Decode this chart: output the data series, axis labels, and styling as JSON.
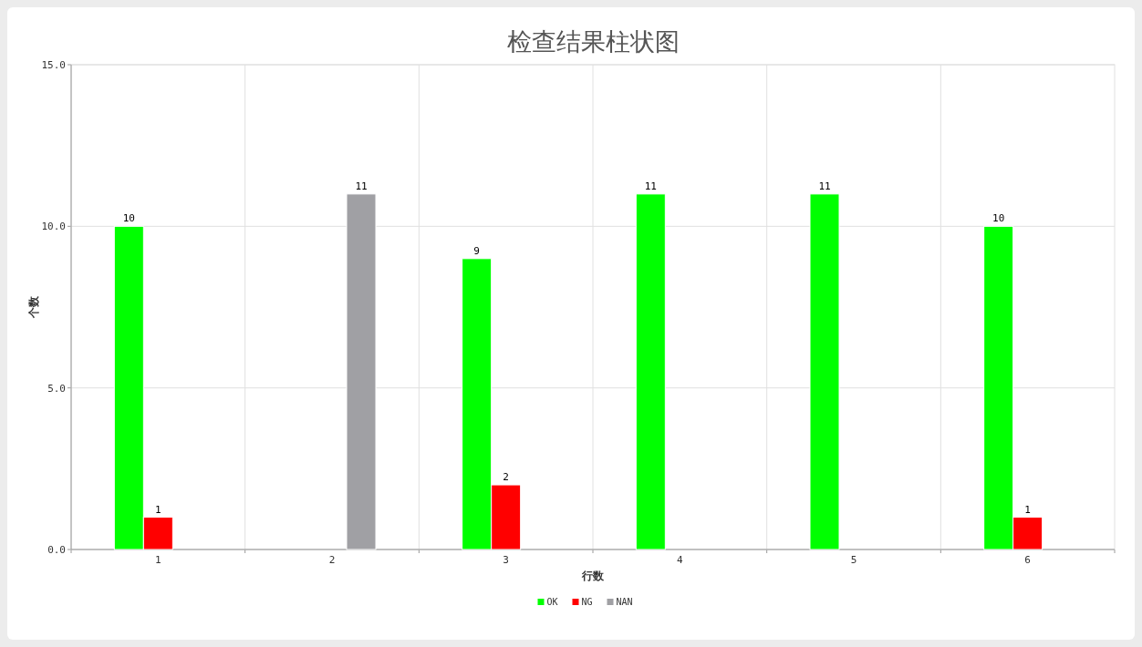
{
  "chart_data": {
    "type": "bar",
    "title": "检查结果柱状图",
    "xlabel": "行数",
    "ylabel": "个数",
    "categories": [
      "1",
      "2",
      "3",
      "4",
      "5",
      "6"
    ],
    "series": [
      {
        "name": "OK",
        "color": "#00ff00",
        "values": [
          10,
          null,
          9,
          11,
          11,
          10
        ]
      },
      {
        "name": "NG",
        "color": "#ff0000",
        "values": [
          1,
          null,
          2,
          null,
          null,
          1
        ]
      },
      {
        "name": "NAN",
        "color": "#a0a0a4",
        "values": [
          null,
          11,
          null,
          null,
          null,
          null
        ]
      }
    ],
    "ylim": [
      0,
      15
    ],
    "yticks": [
      {
        "value": 0,
        "label": "0.0"
      },
      {
        "value": 5,
        "label": "5.0"
      },
      {
        "value": 10,
        "label": "10.0"
      },
      {
        "value": 15,
        "label": "15.0"
      }
    ],
    "grid": true,
    "legend": "bottom",
    "data_labels": true
  }
}
